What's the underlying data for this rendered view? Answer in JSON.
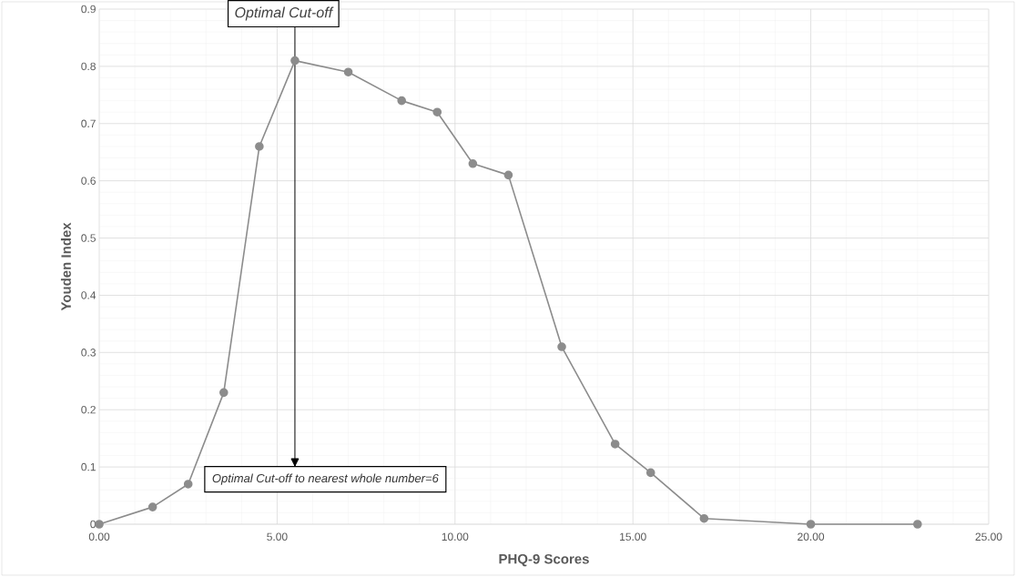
{
  "chart_data": {
    "type": "line",
    "xlabel": "PHQ-9 Scores",
    "ylabel": "Youden Index",
    "x": [
      0,
      1.5,
      2.5,
      3.5,
      4.5,
      5.5,
      7,
      8.5,
      9.5,
      10.5,
      11.5,
      13,
      14.5,
      15.5,
      17,
      20,
      23
    ],
    "series": [
      {
        "color": "#8c8c8c",
        "values": [
          0,
          0.03,
          0.07,
          0.23,
          0.66,
          0.81,
          0.79,
          0.74,
          0.72,
          0.63,
          0.61,
          0.31,
          0.14,
          0.09,
          0.01,
          0,
          0
        ]
      }
    ],
    "xlim": [
      0,
      25
    ],
    "ylim": [
      0,
      0.9
    ],
    "xticks": [
      {
        "value": 0,
        "label": "0.00"
      },
      {
        "value": 5,
        "label": "5.00"
      },
      {
        "value": 10,
        "label": "10.00"
      },
      {
        "value": 15,
        "label": "15.00"
      },
      {
        "value": 20,
        "label": "20.00"
      },
      {
        "value": 25,
        "label": "25.00"
      }
    ],
    "yticks": [
      0,
      0.1,
      0.2,
      0.3,
      0.4,
      0.5,
      0.6,
      0.7,
      0.8,
      0.9
    ],
    "grid": true,
    "marker": "circle",
    "line_style": "solid",
    "ref_lines": [
      {
        "axis": "x",
        "value": 5.5,
        "label": "Optimal Cut-off",
        "color": "#000000"
      }
    ],
    "annotations": [
      "Optimal Cut-off to nearest whole number=6"
    ]
  }
}
